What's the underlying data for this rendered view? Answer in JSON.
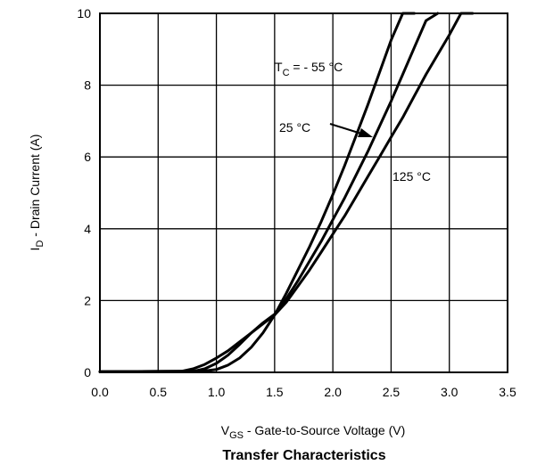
{
  "chart_data": {
    "type": "line",
    "title": "Transfer Characteristics",
    "xlabel": {
      "main": "V",
      "sub": "GS",
      "rest": " - Gate-to-Source Voltage (V)"
    },
    "ylabel": {
      "main": "I",
      "sub": "D",
      "rest": " - Drain Current (A)"
    },
    "xlim": [
      0,
      3.5
    ],
    "ylim": [
      0,
      10
    ],
    "xticks": [
      "0.0",
      "0.5",
      "1.0",
      "1.5",
      "2.0",
      "2.5",
      "3.0",
      "3.5"
    ],
    "yticks": [
      "0",
      "2",
      "4",
      "6",
      "8",
      "10"
    ],
    "grid": true,
    "series": [
      {
        "name": "- 55 °C",
        "x": [
          0.0,
          0.8,
          0.9,
          1.0,
          1.1,
          1.2,
          1.3,
          1.4,
          1.5,
          1.6,
          1.7,
          1.8,
          1.9,
          2.0,
          2.1,
          2.2,
          2.3,
          2.4,
          2.5,
          2.6,
          2.7
        ],
        "y": [
          0.02,
          0.03,
          0.04,
          0.08,
          0.2,
          0.4,
          0.7,
          1.1,
          1.6,
          2.2,
          2.85,
          3.5,
          4.2,
          4.95,
          5.75,
          6.6,
          7.45,
          8.35,
          9.25,
          10.0,
          10.0
        ]
      },
      {
        "name": "25 °C",
        "x": [
          0.0,
          0.8,
          0.9,
          1.0,
          1.1,
          1.2,
          1.3,
          1.4,
          1.5,
          1.6,
          1.7,
          1.8,
          1.9,
          2.0,
          2.1,
          2.2,
          2.3,
          2.4,
          2.5,
          2.6,
          2.7,
          2.8,
          2.9
        ],
        "y": [
          0.02,
          0.03,
          0.1,
          0.25,
          0.48,
          0.78,
          1.1,
          1.38,
          1.62,
          2.05,
          2.55,
          3.1,
          3.65,
          4.25,
          4.85,
          5.5,
          6.15,
          6.85,
          7.55,
          8.3,
          9.05,
          9.8,
          10.0
        ]
      },
      {
        "name": "125 °C",
        "x": [
          0.0,
          0.7,
          0.8,
          0.9,
          1.0,
          1.1,
          1.2,
          1.3,
          1.4,
          1.5,
          1.6,
          1.7,
          1.8,
          1.9,
          2.0,
          2.1,
          2.2,
          2.3,
          2.4,
          2.5,
          2.6,
          2.7,
          2.8,
          2.9,
          3.0,
          3.1,
          3.2
        ],
        "y": [
          0.02,
          0.03,
          0.1,
          0.22,
          0.4,
          0.6,
          0.85,
          1.1,
          1.35,
          1.6,
          1.95,
          2.4,
          2.85,
          3.35,
          3.85,
          4.35,
          4.9,
          5.45,
          6.0,
          6.55,
          7.1,
          7.7,
          8.3,
          8.85,
          9.4,
          10.0,
          10.0
        ]
      }
    ],
    "annotations": {
      "tc_main": "T",
      "tc_sub": "C",
      "tc_rest": " = - 55 °C",
      "t25": "25 °C",
      "t125": "125 °C"
    }
  }
}
